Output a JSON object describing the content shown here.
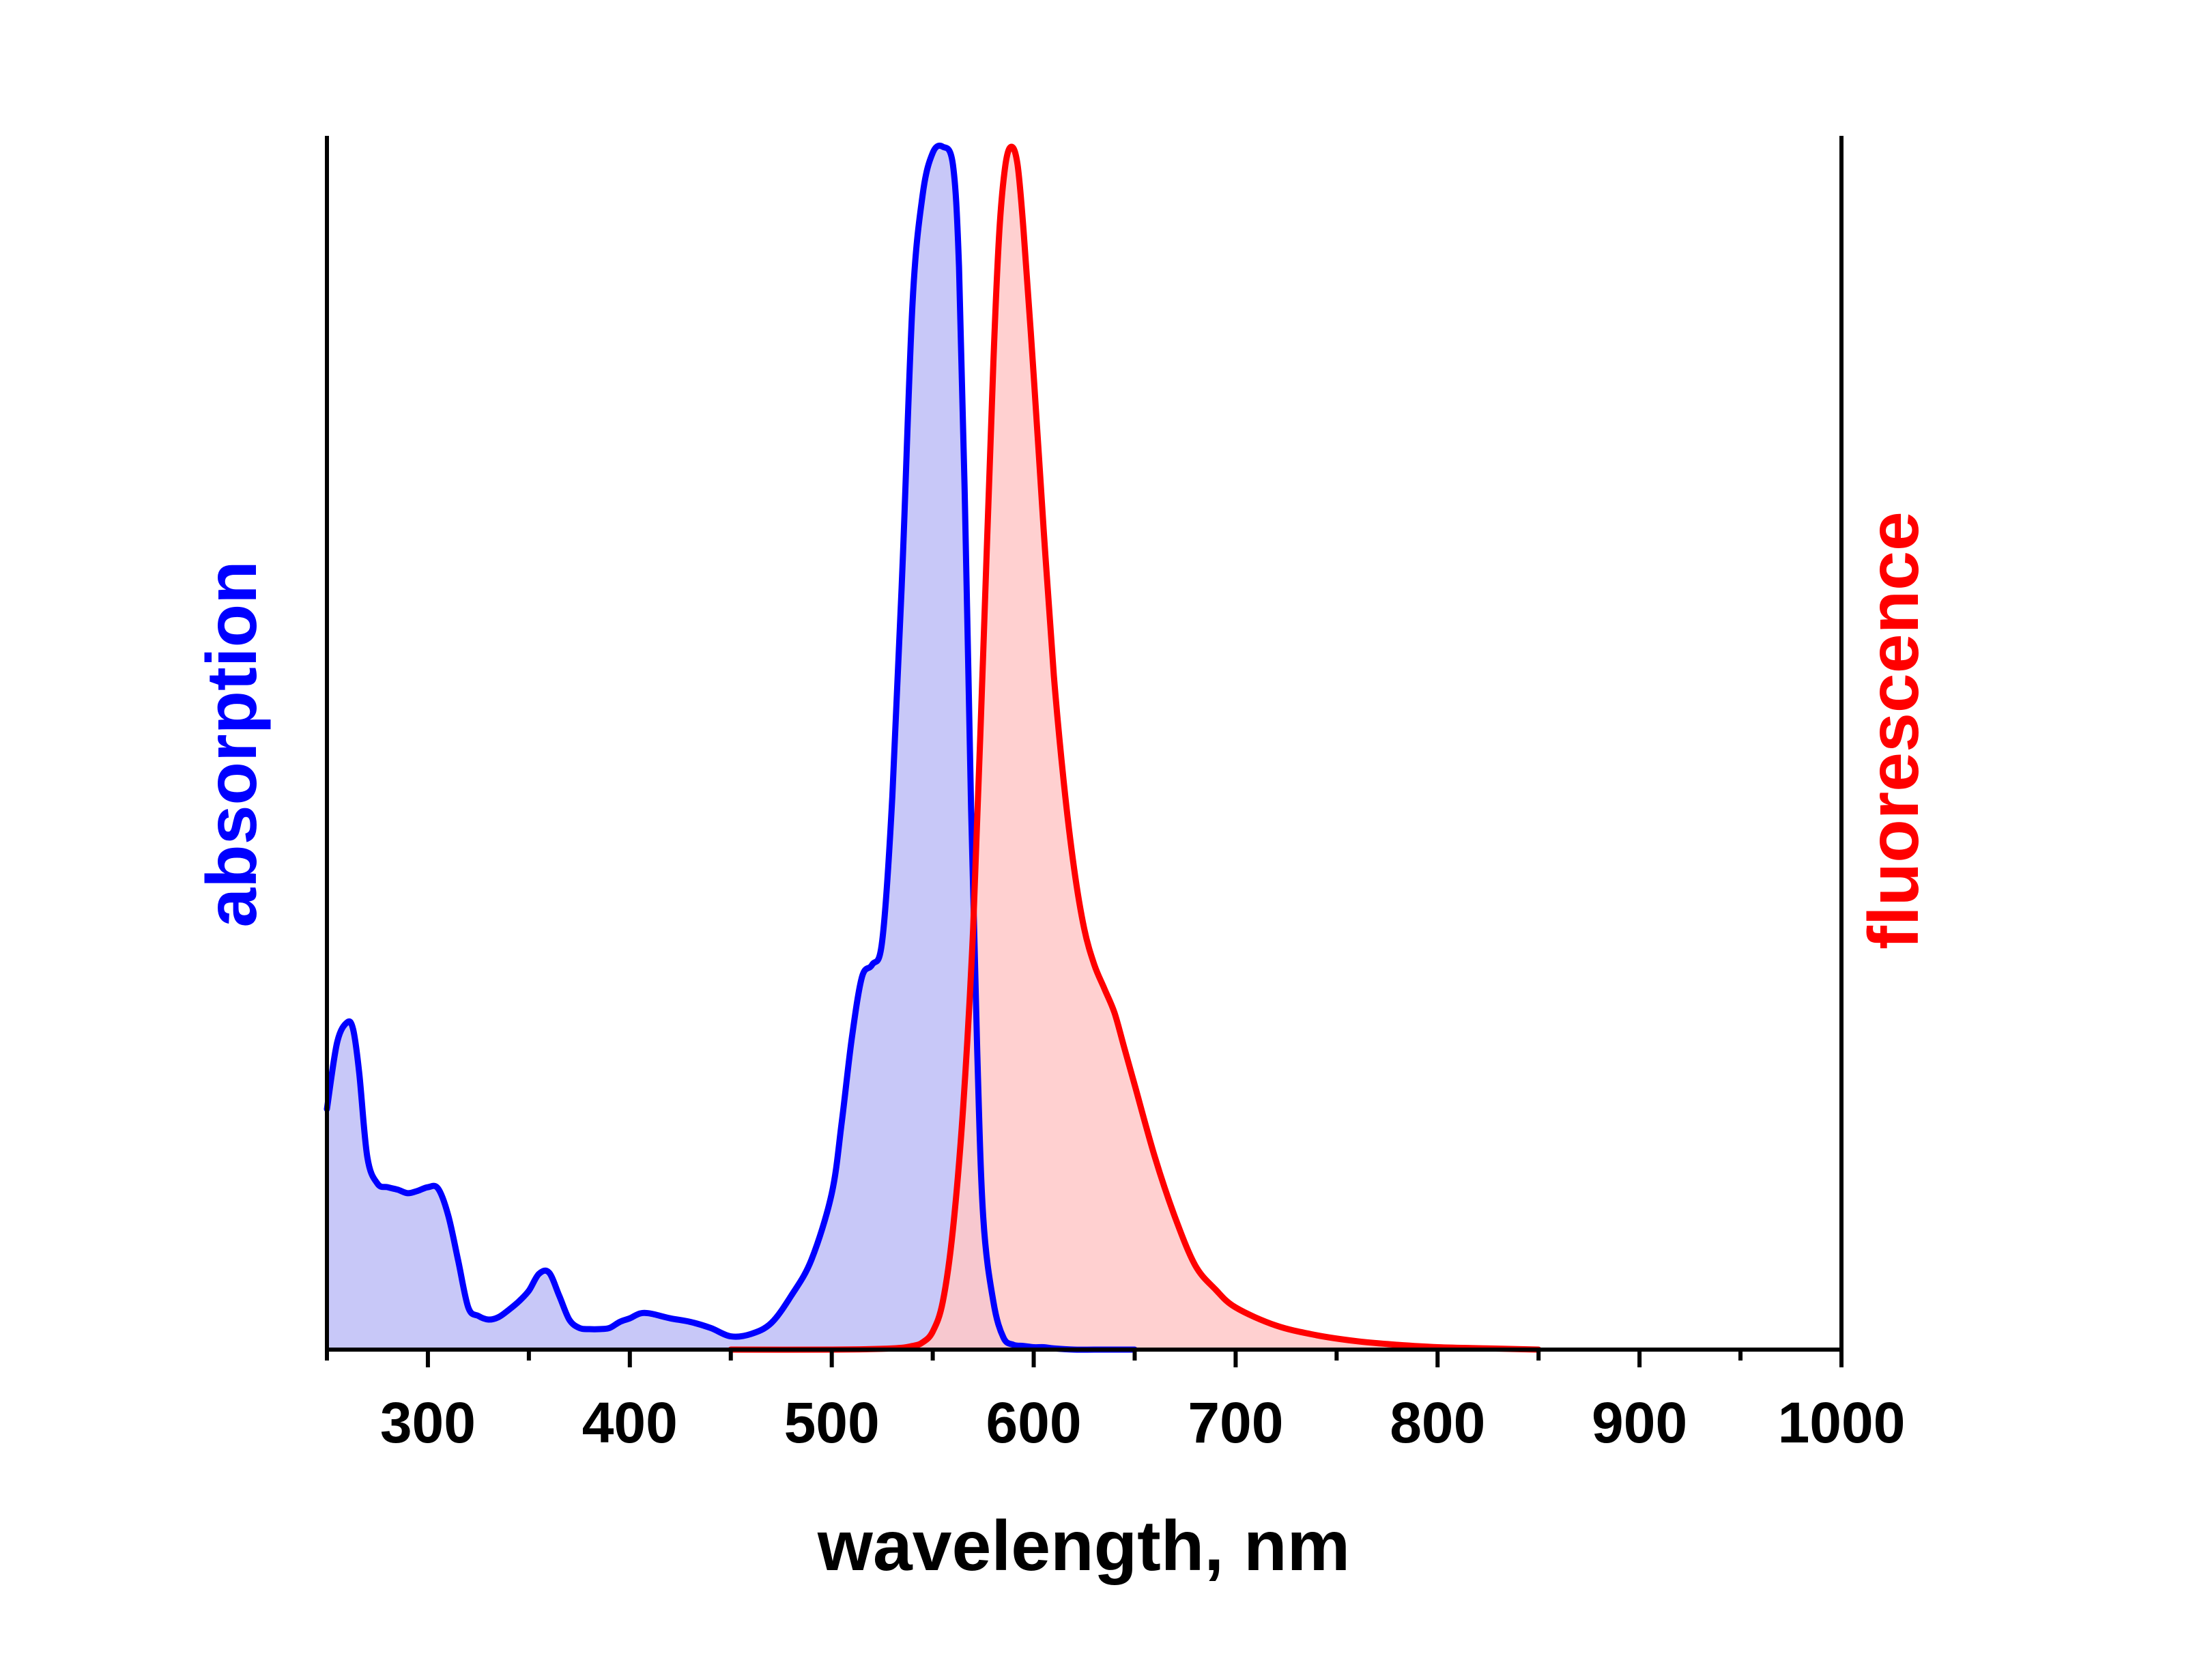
{
  "chart_data": {
    "type": "area",
    "xlabel": "wavelength, nm",
    "ylabel_left": "absorption",
    "ylabel_right": "fluorescence",
    "xlim": [
      250,
      1000
    ],
    "ylim": [
      0,
      1
    ],
    "x_ticks": [
      300,
      400,
      500,
      600,
      700,
      800,
      900,
      1000
    ],
    "x_minor_ticks": [
      250,
      350,
      450,
      550,
      650,
      750,
      850,
      950
    ],
    "y_ticks_shown": false,
    "grid": false,
    "legend": "none",
    "colors": {
      "absorption_line": "#0000ff",
      "absorption_fill": "#c8c8f8",
      "fluorescence_line": "#ff0000",
      "fluorescence_fill": "#ffc8c8",
      "axes": "#000000"
    },
    "series": [
      {
        "axis": "left",
        "x": [
          250,
          255,
          260,
          263,
          266,
          270,
          275,
          280,
          285,
          290,
          295,
          300,
          305,
          310,
          315,
          320,
          325,
          330,
          335,
          340,
          345,
          350,
          355,
          360,
          365,
          370,
          375,
          380,
          385,
          390,
          395,
          400,
          405,
          410,
          420,
          430,
          440,
          450,
          460,
          470,
          480,
          490,
          500,
          505,
          510,
          515,
          520,
          525,
          530,
          535,
          540,
          545,
          550,
          555,
          560,
          563,
          566,
          569,
          572,
          575,
          580,
          585,
          590,
          595,
          600,
          605,
          610,
          620,
          630,
          640,
          650
        ],
        "values": [
          0.2,
          0.255,
          0.272,
          0.266,
          0.23,
          0.16,
          0.138,
          0.135,
          0.133,
          0.13,
          0.132,
          0.135,
          0.134,
          0.112,
          0.074,
          0.035,
          0.028,
          0.025,
          0.027,
          0.033,
          0.04,
          0.049,
          0.063,
          0.064,
          0.045,
          0.025,
          0.018,
          0.017,
          0.017,
          0.018,
          0.023,
          0.026,
          0.03,
          0.03,
          0.026,
          0.023,
          0.018,
          0.011,
          0.013,
          0.022,
          0.045,
          0.075,
          0.13,
          0.19,
          0.26,
          0.31,
          0.32,
          0.34,
          0.46,
          0.65,
          0.87,
          0.96,
          0.995,
          1.0,
          0.985,
          0.9,
          0.7,
          0.45,
          0.25,
          0.11,
          0.04,
          0.01,
          0.004,
          0.003,
          0.002,
          0.002,
          0.001,
          0.0,
          0.0,
          0.0,
          0.0
        ]
      },
      {
        "axis": "right",
        "x": [
          450,
          500,
          530,
          540,
          545,
          550,
          555,
          560,
          565,
          570,
          575,
          580,
          583,
          586,
          589,
          592,
          595,
          600,
          605,
          610,
          615,
          620,
          625,
          630,
          635,
          640,
          645,
          650,
          660,
          670,
          680,
          690,
          700,
          720,
          740,
          760,
          780,
          800,
          825,
          850
        ],
        "values": [
          0.0,
          0.0,
          0.001,
          0.003,
          0.006,
          0.015,
          0.04,
          0.1,
          0.2,
          0.35,
          0.58,
          0.82,
          0.93,
          0.985,
          1.0,
          0.985,
          0.93,
          0.81,
          0.68,
          0.56,
          0.47,
          0.4,
          0.35,
          0.32,
          0.3,
          0.28,
          0.25,
          0.22,
          0.16,
          0.11,
          0.07,
          0.05,
          0.035,
          0.02,
          0.012,
          0.007,
          0.004,
          0.002,
          0.001,
          0.0
        ]
      }
    ]
  }
}
